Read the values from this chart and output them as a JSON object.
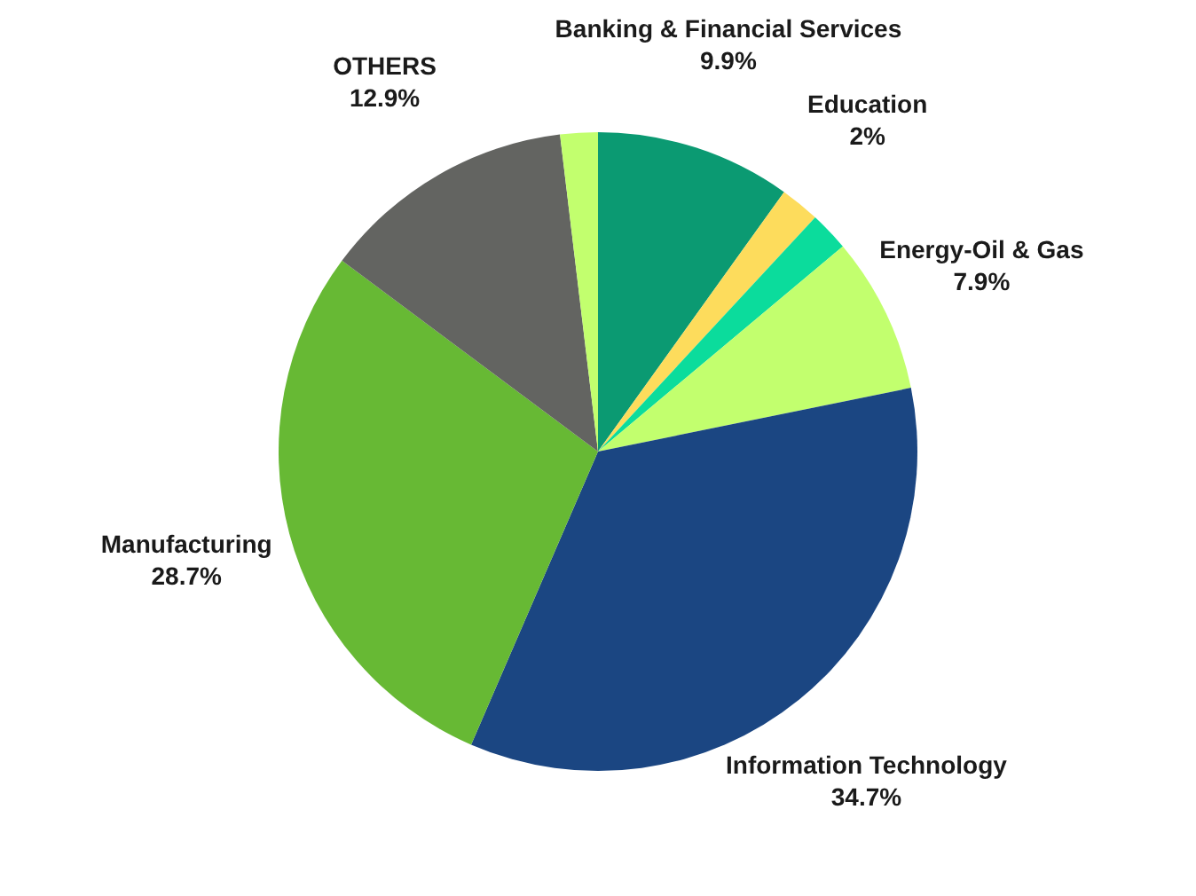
{
  "chart_data": {
    "type": "pie",
    "categories": [
      "Banking & Financial Services",
      "Education",
      null,
      "Energy-Oil & Gas",
      "Information Technology",
      "Manufacturing",
      "OTHERS",
      null
    ],
    "values": [
      9.9,
      2,
      2,
      7.9,
      34.7,
      28.7,
      12.9,
      1.9
    ],
    "value_labels": [
      "9.9%",
      "2%",
      null,
      "7.9%",
      "34.7%",
      "28.7%",
      "12.9%",
      null
    ],
    "colors": [
      "#0b9a72",
      "#fddc5c",
      "#0bdc9c",
      "#c2ff6e",
      "#1b4682",
      "#67b934",
      "#636461",
      "#c2ff6e"
    ],
    "legend": false
  }
}
